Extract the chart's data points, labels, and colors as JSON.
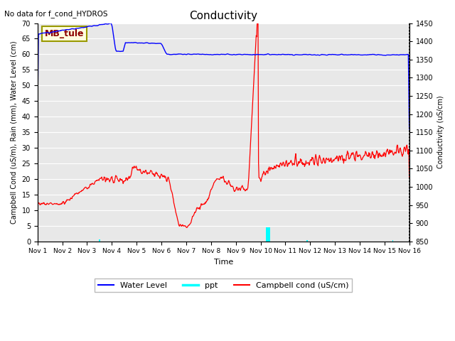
{
  "title": "Conductivity",
  "top_left_text": "No data for f_cond_HYDROS",
  "ylabel_left": "Campbell Cond (uS/m), Rain (mm), Water Level (cm)",
  "ylabel_right": "Conductivity (uS/cm)",
  "xlabel": "Time",
  "ylim_left": [
    0,
    70
  ],
  "ylim_right": [
    850,
    1450
  ],
  "legend_entries": [
    "Water Level",
    "ppt",
    "Campbell cond (uS/cm)"
  ],
  "annotation_box": "MB_tule",
  "bg_color": "#e8e8e8",
  "grid_color": "white",
  "fig_bg": "white",
  "xtick_labels": [
    "Nov 1",
    "Nov 2",
    "Nov 3",
    "Nov 4",
    "Nov 5",
    "Nov 6",
    "Nov 7",
    "Nov 8",
    "Nov 9",
    "Nov 10",
    "Nov 11",
    "Nov 12",
    "Nov 13",
    "Nov 14",
    "Nov 15",
    "Nov 16"
  ],
  "right_yticks": [
    850,
    900,
    950,
    1000,
    1050,
    1100,
    1150,
    1200,
    1250,
    1300,
    1350,
    1400,
    1450
  ],
  "left_yticks": [
    0,
    5,
    10,
    15,
    20,
    25,
    30,
    35,
    40,
    45,
    50,
    55,
    60,
    65,
    70
  ]
}
